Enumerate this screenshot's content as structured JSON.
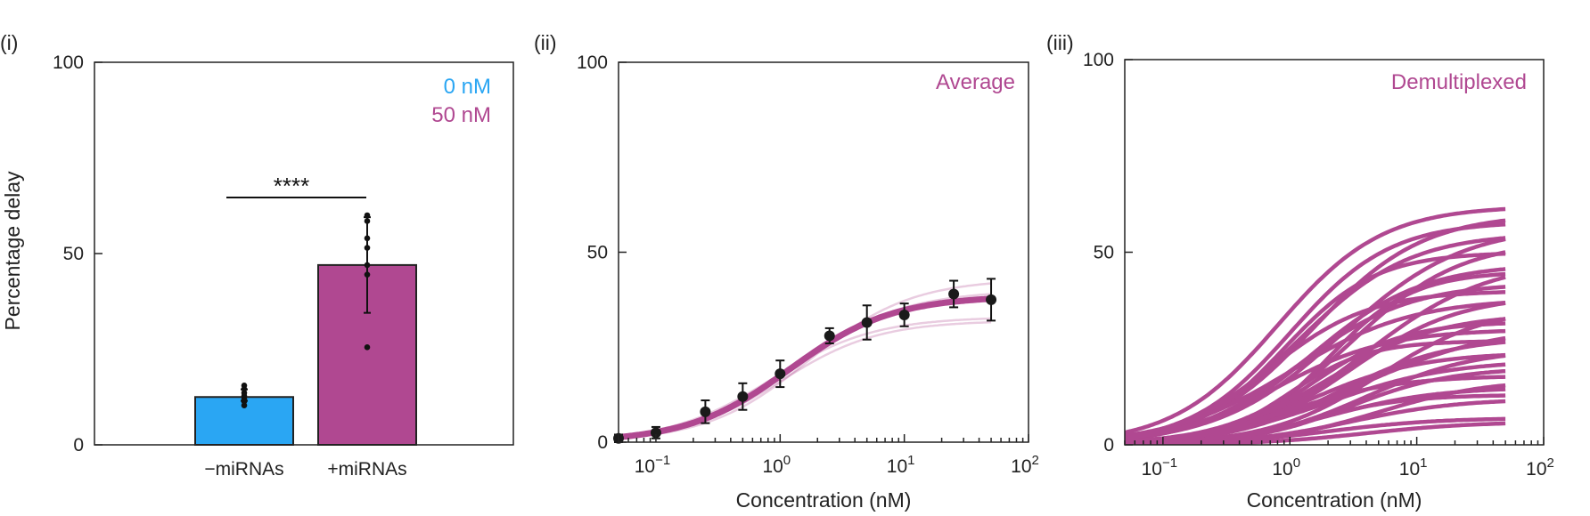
{
  "chart_data": [
    {
      "panel_label": "(i)",
      "type": "bar",
      "ylabel": "Percentage delay",
      "ylim": [
        0,
        100
      ],
      "yticks": [
        0,
        50,
        100
      ],
      "categories": [
        "−miRNAs",
        "+miRNAs"
      ],
      "values": [
        12.5,
        47.0
      ],
      "errors": [
        [
          11.5,
          14.5
        ],
        [
          34.5,
          59.5
        ]
      ],
      "colors": [
        "#2aa6f3",
        "#b04891"
      ],
      "points": [
        [
          10.3,
          11.3,
          12.0,
          12.8,
          13.6,
          14.6,
          15.5
        ],
        [
          25.5,
          44.5,
          47.0,
          51.5,
          54.0,
          58.5,
          60.0
        ]
      ],
      "legend": [
        {
          "label": "0 nM",
          "color": "#2aa6f3"
        },
        {
          "label": "50 nM",
          "color": "#b04891"
        }
      ],
      "significance": "****"
    },
    {
      "panel_label": "(ii)",
      "type": "line",
      "xlabel": "Concentration (nM)",
      "xscale": "log",
      "xlim": [
        0.05,
        100
      ],
      "ylim": [
        0,
        100
      ],
      "yticks": [
        0,
        50,
        100
      ],
      "xtick_exponents": [
        "−1",
        "0",
        "1",
        "2"
      ],
      "annotation": "Average",
      "color": "#b04891",
      "points": {
        "x": [
          0.05,
          0.1,
          0.25,
          0.5,
          1,
          2.5,
          5,
          10,
          25,
          50
        ],
        "y": [
          1.0,
          2.5,
          8.0,
          12.0,
          18.0,
          28.0,
          31.5,
          33.5,
          39.0,
          37.5
        ],
        "err": [
          1.0,
          1.5,
          3.0,
          3.5,
          3.5,
          2.0,
          4.5,
          3.0,
          3.5,
          5.5
        ]
      },
      "fit": {
        "top": 38.5,
        "ec50": 1.2,
        "hill": 1.05
      },
      "replicates": [
        {
          "top": 43,
          "ec50": 1.7,
          "hill": 1.05
        },
        {
          "top": 33,
          "ec50": 0.85,
          "hill": 1.05
        },
        {
          "top": 32,
          "ec50": 1.0,
          "hill": 1.1
        },
        {
          "top": 40,
          "ec50": 1.3,
          "hill": 1.0
        }
      ]
    },
    {
      "panel_label": "(iii)",
      "type": "line",
      "xlabel": "Concentration (nM)",
      "xscale": "log",
      "xlim": [
        0.05,
        100
      ],
      "xmax_curve": 50,
      "ylim": [
        0,
        100
      ],
      "yticks": [
        0,
        50,
        100
      ],
      "xtick_exponents": [
        "−1",
        "0",
        "1",
        "2"
      ],
      "annotation": "Demultiplexed",
      "color": "#b04891",
      "curves": [
        {
          "top": 62,
          "ec50": 0.8,
          "hill": 1.05
        },
        {
          "top": 60,
          "ec50": 1.5,
          "hill": 1.0
        },
        {
          "top": 58,
          "ec50": 1.0,
          "hill": 1.1
        },
        {
          "top": 57,
          "ec50": 2.5,
          "hill": 0.9
        },
        {
          "top": 55,
          "ec50": 1.2,
          "hill": 1.0
        },
        {
          "top": 53,
          "ec50": 3.0,
          "hill": 1.0
        },
        {
          "top": 50,
          "ec50": 0.9,
          "hill": 1.2
        },
        {
          "top": 48,
          "ec50": 4.0,
          "hill": 0.9
        },
        {
          "top": 47,
          "ec50": 1.5,
          "hill": 1.0
        },
        {
          "top": 45,
          "ec50": 2.0,
          "hill": 1.3
        },
        {
          "top": 42,
          "ec50": 1.2,
          "hill": 1.0
        },
        {
          "top": 40,
          "ec50": 0.7,
          "hill": 1.1
        },
        {
          "top": 39,
          "ec50": 3.0,
          "hill": 1.0
        },
        {
          "top": 38,
          "ec50": 1.0,
          "hill": 0.9
        },
        {
          "top": 36,
          "ec50": 5.0,
          "hill": 1.0
        },
        {
          "top": 34,
          "ec50": 2.0,
          "hill": 1.0
        },
        {
          "top": 32,
          "ec50": 1.5,
          "hill": 1.2
        },
        {
          "top": 31,
          "ec50": 3.5,
          "hill": 0.8
        },
        {
          "top": 30,
          "ec50": 0.8,
          "hill": 1.0
        },
        {
          "top": 28,
          "ec50": 2.5,
          "hill": 1.0
        },
        {
          "top": 27,
          "ec50": 1.0,
          "hill": 1.4
        },
        {
          "top": 25,
          "ec50": 4.0,
          "hill": 1.0
        },
        {
          "top": 24,
          "ec50": 1.5,
          "hill": 1.0
        },
        {
          "top": 22,
          "ec50": 2.0,
          "hill": 0.9
        },
        {
          "top": 20,
          "ec50": 3.0,
          "hill": 1.1
        },
        {
          "top": 18,
          "ec50": 1.0,
          "hill": 1.0
        },
        {
          "top": 17,
          "ec50": 5.0,
          "hill": 1.0
        },
        {
          "top": 15,
          "ec50": 2.0,
          "hill": 1.0
        },
        {
          "top": 13,
          "ec50": 1.5,
          "hill": 1.2
        },
        {
          "top": 12,
          "ec50": 3.0,
          "hill": 1.0
        },
        {
          "top": 7,
          "ec50": 2.0,
          "hill": 1.0
        },
        {
          "top": 6,
          "ec50": 4.0,
          "hill": 1.0
        }
      ]
    }
  ]
}
